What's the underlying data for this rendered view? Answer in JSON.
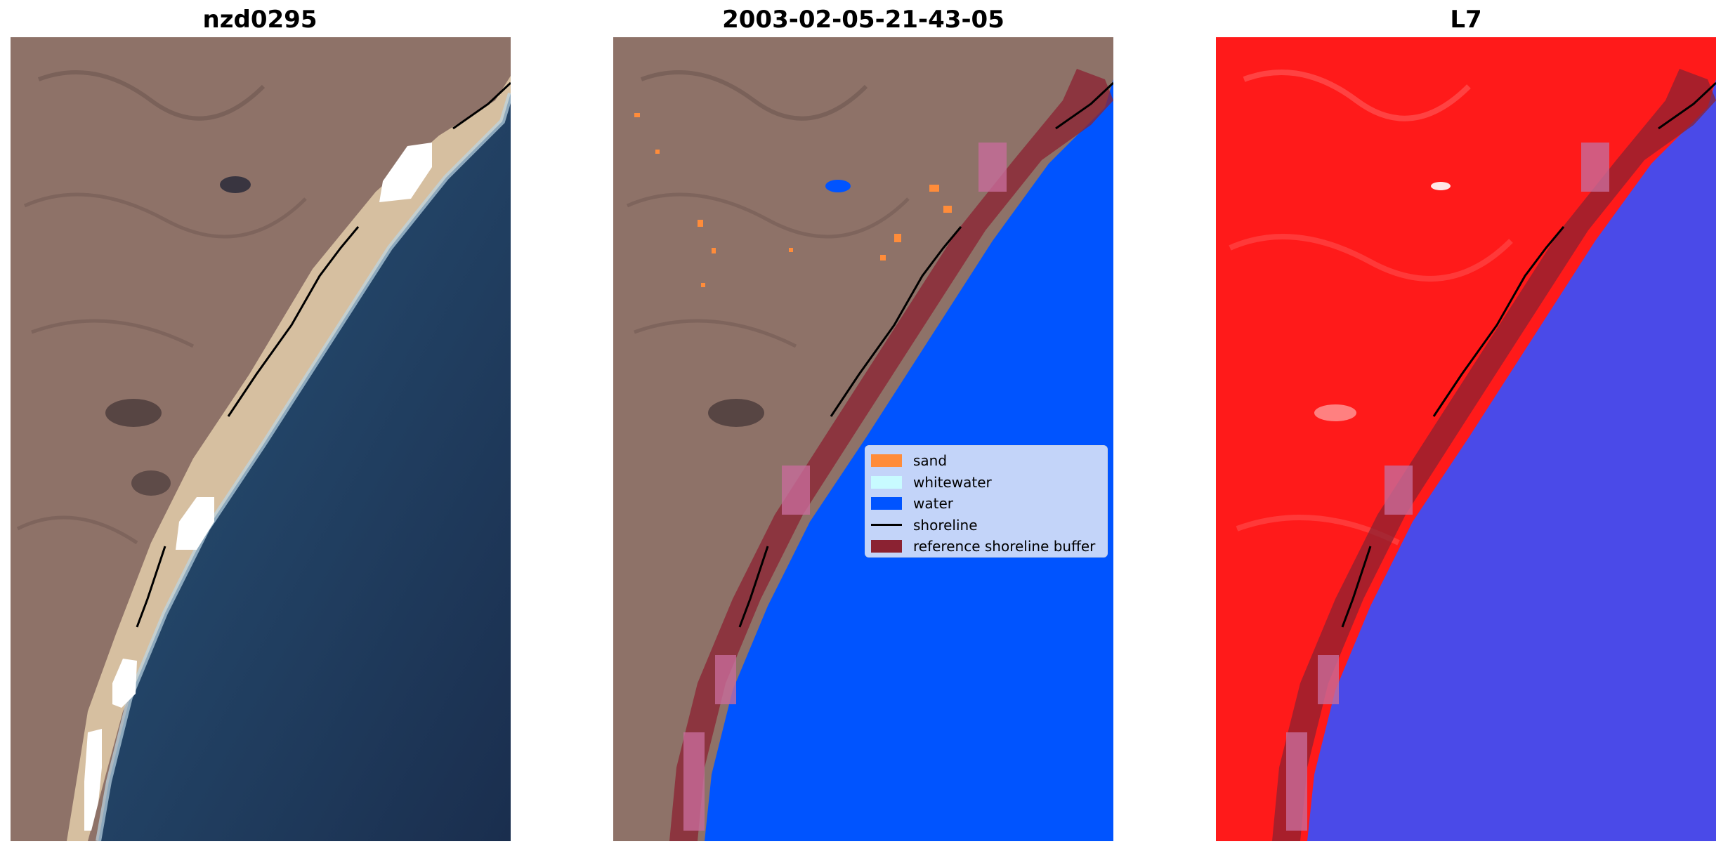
{
  "panels": [
    {
      "title": "nzd0295"
    },
    {
      "title": "2003-02-05-21-43-05"
    },
    {
      "title": "L7"
    }
  ],
  "legend": {
    "items": [
      {
        "label": "sand",
        "color": "#ff8c3a",
        "kind": "patch"
      },
      {
        "label": "whitewater",
        "color": "#c8fbff",
        "kind": "patch"
      },
      {
        "label": "water",
        "color": "#0054ff",
        "kind": "patch"
      },
      {
        "label": "shoreline",
        "color": "#000000",
        "kind": "line"
      },
      {
        "label": "reference shoreline buffer",
        "color": "#8b2232",
        "kind": "patch"
      }
    ]
  },
  "colors": {
    "land": "#8e7268",
    "sea": "#1d3454",
    "sand_beach": "#d6bfa0",
    "water_class": "#0054ff",
    "land_ratio": "#ff1a1a",
    "water_ratio": "#4a4ae8",
    "buffer": "#8b2232",
    "masked_cloud": "#ffffff"
  }
}
